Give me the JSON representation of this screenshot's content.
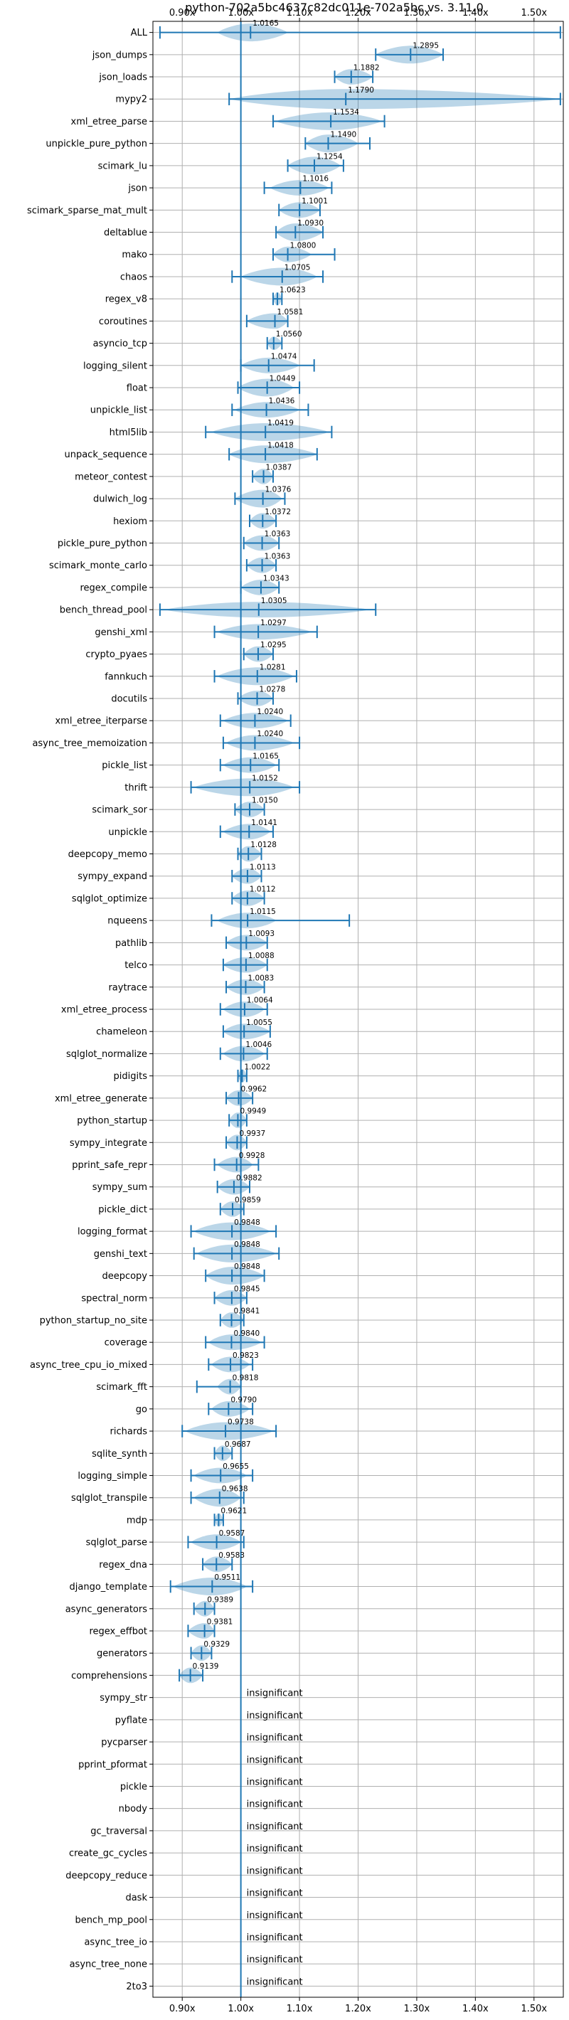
{
  "chart_data": {
    "type": "violin",
    "title": "python-702a5bc4637c82dc011e-702a5bc vs. 3.11.0",
    "xlim": [
      0.85,
      1.55
    ],
    "xticks": [
      0.9,
      1.0,
      1.1,
      1.2,
      1.3,
      1.4,
      1.5
    ],
    "xtick_labels": [
      "0.90x",
      "1.00x",
      "1.10x",
      "1.20x",
      "1.30x",
      "1.40x",
      "1.50x"
    ],
    "x_axis_position": "top and bottom",
    "reference_line": 1.0,
    "grid": true,
    "insignificant_label": "insignificant",
    "benchmarks": [
      {
        "name": "ALL",
        "value": 1.0165,
        "label": "1.0165",
        "lo": 0.862,
        "hi": 1.545,
        "vlo": 0.96,
        "vhi": 1.08,
        "vw": 0.8
      },
      {
        "name": "json_dumps",
        "value": 1.2895,
        "label": "1.2895",
        "lo": 1.23,
        "hi": 1.345,
        "vlo": 1.23,
        "vhi": 1.345,
        "vw": 0.8
      },
      {
        "name": "json_loads",
        "value": 1.1882,
        "label": "1.1882",
        "lo": 1.16,
        "hi": 1.225,
        "vlo": 1.16,
        "vhi": 1.225,
        "vw": 0.7
      },
      {
        "name": "mypy2",
        "value": 1.179,
        "label": "1.1790",
        "lo": 0.98,
        "hi": 1.545,
        "vlo": 0.98,
        "vhi": 1.545,
        "vw": 0.9
      },
      {
        "name": "xml_etree_parse",
        "value": 1.1534,
        "label": "1.1534",
        "lo": 1.055,
        "hi": 1.245,
        "vlo": 1.06,
        "vhi": 1.24,
        "vw": 0.8
      },
      {
        "name": "unpickle_pure_python",
        "value": 1.149,
        "label": "1.1490",
        "lo": 1.11,
        "hi": 1.22,
        "vlo": 1.11,
        "vhi": 1.2,
        "vw": 0.8
      },
      {
        "name": "scimark_lu",
        "value": 1.1254,
        "label": "1.1254",
        "lo": 1.08,
        "hi": 1.175,
        "vlo": 1.08,
        "vhi": 1.17,
        "vw": 0.8
      },
      {
        "name": "json",
        "value": 1.1016,
        "label": "1.1016",
        "lo": 1.04,
        "hi": 1.155,
        "vlo": 1.05,
        "vhi": 1.15,
        "vw": 0.7
      },
      {
        "name": "scimark_sparse_mat_mult",
        "value": 1.1001,
        "label": "1.1001",
        "lo": 1.065,
        "hi": 1.135,
        "vlo": 1.065,
        "vhi": 1.135,
        "vw": 0.7
      },
      {
        "name": "deltablue",
        "value": 1.093,
        "label": "1.0930",
        "lo": 1.06,
        "hi": 1.14,
        "vlo": 1.06,
        "vhi": 1.14,
        "vw": 0.8
      },
      {
        "name": "mako",
        "value": 1.08,
        "label": "1.0800",
        "lo": 1.055,
        "hi": 1.16,
        "vlo": 1.055,
        "vhi": 1.12,
        "vw": 0.7
      },
      {
        "name": "chaos",
        "value": 1.0705,
        "label": "1.0705",
        "lo": 0.985,
        "hi": 1.14,
        "vlo": 1.0,
        "vhi": 1.13,
        "vw": 0.8
      },
      {
        "name": "regex_v8",
        "value": 1.0623,
        "label": "1.0623",
        "lo": 1.055,
        "hi": 1.07,
        "vlo": 1.055,
        "vhi": 1.07,
        "vw": 0.6
      },
      {
        "name": "coroutines",
        "value": 1.0581,
        "label": "1.0581",
        "lo": 1.01,
        "hi": 1.08,
        "vlo": 1.01,
        "vhi": 1.08,
        "vw": 0.7
      },
      {
        "name": "asyncio_tcp",
        "value": 1.056,
        "label": "1.0560",
        "lo": 1.045,
        "hi": 1.07,
        "vlo": 1.045,
        "vhi": 1.07,
        "vw": 0.6
      },
      {
        "name": "logging_silent",
        "value": 1.0474,
        "label": "1.0474",
        "lo": 1.0,
        "hi": 1.125,
        "vlo": 1.0,
        "vhi": 1.1,
        "vw": 0.7
      },
      {
        "name": "float",
        "value": 1.0449,
        "label": "1.0449",
        "lo": 0.995,
        "hi": 1.1,
        "vlo": 0.995,
        "vhi": 1.09,
        "vw": 0.8
      },
      {
        "name": "unpickle_list",
        "value": 1.0436,
        "label": "1.0436",
        "lo": 0.985,
        "hi": 1.115,
        "vlo": 0.99,
        "vhi": 1.1,
        "vw": 0.7
      },
      {
        "name": "html5lib",
        "value": 1.0419,
        "label": "1.0419",
        "lo": 0.94,
        "hi": 1.155,
        "vlo": 0.95,
        "vhi": 1.15,
        "vw": 0.8
      },
      {
        "name": "unpack_sequence",
        "value": 1.0418,
        "label": "1.0418",
        "lo": 0.98,
        "hi": 1.13,
        "vlo": 0.98,
        "vhi": 1.13,
        "vw": 0.8
      },
      {
        "name": "meteor_contest",
        "value": 1.0387,
        "label": "1.0387",
        "lo": 1.02,
        "hi": 1.055,
        "vlo": 1.02,
        "vhi": 1.055,
        "vw": 0.7
      },
      {
        "name": "dulwich_log",
        "value": 1.0376,
        "label": "1.0376",
        "lo": 0.99,
        "hi": 1.075,
        "vlo": 0.99,
        "vhi": 1.07,
        "vw": 0.8
      },
      {
        "name": "hexiom",
        "value": 1.0372,
        "label": "1.0372",
        "lo": 1.015,
        "hi": 1.06,
        "vlo": 1.015,
        "vhi": 1.06,
        "vw": 0.7
      },
      {
        "name": "pickle_pure_python",
        "value": 1.0363,
        "label": "1.0363",
        "lo": 1.005,
        "hi": 1.065,
        "vlo": 1.005,
        "vhi": 1.065,
        "vw": 0.7
      },
      {
        "name": "scimark_monte_carlo",
        "value": 1.0363,
        "label": "1.0363",
        "lo": 1.01,
        "hi": 1.06,
        "vlo": 1.01,
        "vhi": 1.06,
        "vw": 0.7
      },
      {
        "name": "regex_compile",
        "value": 1.0343,
        "label": "1.0343",
        "lo": 1.0,
        "hi": 1.065,
        "vlo": 1.0,
        "vhi": 1.065,
        "vw": 0.7
      },
      {
        "name": "bench_thread_pool",
        "value": 1.0305,
        "label": "1.0305",
        "lo": 0.862,
        "hi": 1.23,
        "vlo": 0.87,
        "vhi": 1.22,
        "vw": 0.7
      },
      {
        "name": "genshi_xml",
        "value": 1.0297,
        "label": "1.0297",
        "lo": 0.955,
        "hi": 1.13,
        "vlo": 0.96,
        "vhi": 1.12,
        "vw": 0.7
      },
      {
        "name": "crypto_pyaes",
        "value": 1.0295,
        "label": "1.0295",
        "lo": 1.005,
        "hi": 1.055,
        "vlo": 1.005,
        "vhi": 1.055,
        "vw": 0.7
      },
      {
        "name": "fannkuch",
        "value": 1.0281,
        "label": "1.0281",
        "lo": 0.955,
        "hi": 1.095,
        "vlo": 0.96,
        "vhi": 1.09,
        "vw": 0.8
      },
      {
        "name": "docutils",
        "value": 1.0278,
        "label": "1.0278",
        "lo": 0.995,
        "hi": 1.055,
        "vlo": 0.995,
        "vhi": 1.055,
        "vw": 0.7
      },
      {
        "name": "xml_etree_iterparse",
        "value": 1.024,
        "label": "1.0240",
        "lo": 0.965,
        "hi": 1.085,
        "vlo": 0.97,
        "vhi": 1.08,
        "vw": 0.7
      },
      {
        "name": "async_tree_memoization",
        "value": 1.024,
        "label": "1.0240",
        "lo": 0.97,
        "hi": 1.1,
        "vlo": 0.975,
        "vhi": 1.09,
        "vw": 0.7
      },
      {
        "name": "pickle_list",
        "value": 1.0165,
        "label": "1.0165",
        "lo": 0.965,
        "hi": 1.065,
        "vlo": 0.97,
        "vhi": 1.06,
        "vw": 0.7
      },
      {
        "name": "thrift",
        "value": 1.0152,
        "label": "1.0152",
        "lo": 0.915,
        "hi": 1.1,
        "vlo": 0.92,
        "vhi": 1.09,
        "vw": 0.8
      },
      {
        "name": "scimark_sor",
        "value": 1.015,
        "label": "1.0150",
        "lo": 0.99,
        "hi": 1.04,
        "vlo": 0.99,
        "vhi": 1.04,
        "vw": 0.7
      },
      {
        "name": "unpickle",
        "value": 1.0141,
        "label": "1.0141",
        "lo": 0.965,
        "hi": 1.055,
        "vlo": 0.97,
        "vhi": 1.05,
        "vw": 0.7
      },
      {
        "name": "deepcopy_memo",
        "value": 1.0128,
        "label": "1.0128",
        "lo": 0.995,
        "hi": 1.035,
        "vlo": 0.995,
        "vhi": 1.035,
        "vw": 0.7
      },
      {
        "name": "sympy_expand",
        "value": 1.0113,
        "label": "1.0113",
        "lo": 0.985,
        "hi": 1.035,
        "vlo": 0.985,
        "vhi": 1.035,
        "vw": 0.7
      },
      {
        "name": "sqlglot_optimize",
        "value": 1.0112,
        "label": "1.0112",
        "lo": 0.985,
        "hi": 1.04,
        "vlo": 0.985,
        "vhi": 1.04,
        "vw": 0.7
      },
      {
        "name": "nqueens",
        "value": 1.0115,
        "label": "1.0115",
        "lo": 0.95,
        "hi": 1.185,
        "vlo": 0.96,
        "vhi": 1.06,
        "vw": 0.7
      },
      {
        "name": "pathlib",
        "value": 1.0093,
        "label": "1.0093",
        "lo": 0.975,
        "hi": 1.045,
        "vlo": 0.975,
        "vhi": 1.045,
        "vw": 0.7
      },
      {
        "name": "telco",
        "value": 1.0088,
        "label": "1.0088",
        "lo": 0.97,
        "hi": 1.045,
        "vlo": 0.97,
        "vhi": 1.045,
        "vw": 0.7
      },
      {
        "name": "raytrace",
        "value": 1.0083,
        "label": "1.0083",
        "lo": 0.975,
        "hi": 1.04,
        "vlo": 0.975,
        "vhi": 1.04,
        "vw": 0.7
      },
      {
        "name": "xml_etree_process",
        "value": 1.0064,
        "label": "1.0064",
        "lo": 0.965,
        "hi": 1.045,
        "vlo": 0.97,
        "vhi": 1.04,
        "vw": 0.7
      },
      {
        "name": "chameleon",
        "value": 1.0055,
        "label": "1.0055",
        "lo": 0.97,
        "hi": 1.05,
        "vlo": 0.97,
        "vhi": 1.05,
        "vw": 0.7
      },
      {
        "name": "sqlglot_normalize",
        "value": 1.0046,
        "label": "1.0046",
        "lo": 0.965,
        "hi": 1.045,
        "vlo": 0.97,
        "vhi": 1.04,
        "vw": 0.7
      },
      {
        "name": "pidigits",
        "value": 1.0022,
        "label": "1.0022",
        "lo": 0.995,
        "hi": 1.01,
        "vlo": 0.995,
        "vhi": 1.01,
        "vw": 0.6
      },
      {
        "name": "xml_etree_generate",
        "value": 0.9962,
        "label": "0.9962",
        "lo": 0.975,
        "hi": 1.02,
        "vlo": 0.975,
        "vhi": 1.02,
        "vw": 0.7
      },
      {
        "name": "python_startup",
        "value": 0.9949,
        "label": "0.9949",
        "lo": 0.98,
        "hi": 1.01,
        "vlo": 0.98,
        "vhi": 1.01,
        "vw": 0.7
      },
      {
        "name": "sympy_integrate",
        "value": 0.9937,
        "label": "0.9937",
        "lo": 0.975,
        "hi": 1.01,
        "vlo": 0.975,
        "vhi": 1.01,
        "vw": 0.7
      },
      {
        "name": "pprint_safe_repr",
        "value": 0.9928,
        "label": "0.9928",
        "lo": 0.955,
        "hi": 1.03,
        "vlo": 0.96,
        "vhi": 1.02,
        "vw": 0.7
      },
      {
        "name": "sympy_sum",
        "value": 0.9882,
        "label": "0.9882",
        "lo": 0.96,
        "hi": 1.015,
        "vlo": 0.96,
        "vhi": 1.015,
        "vw": 0.7
      },
      {
        "name": "pickle_dict",
        "value": 0.9859,
        "label": "0.9859",
        "lo": 0.965,
        "hi": 1.005,
        "vlo": 0.965,
        "vhi": 1.005,
        "vw": 0.7
      },
      {
        "name": "logging_format",
        "value": 0.9848,
        "label": "0.9848",
        "lo": 0.915,
        "hi": 1.06,
        "vlo": 0.92,
        "vhi": 1.05,
        "vw": 0.8
      },
      {
        "name": "genshi_text",
        "value": 0.9848,
        "label": "0.9848",
        "lo": 0.92,
        "hi": 1.065,
        "vlo": 0.925,
        "vhi": 1.06,
        "vw": 0.8
      },
      {
        "name": "deepcopy",
        "value": 0.9848,
        "label": "0.9848",
        "lo": 0.94,
        "hi": 1.04,
        "vlo": 0.94,
        "vhi": 1.04,
        "vw": 0.8
      },
      {
        "name": "spectral_norm",
        "value": 0.9845,
        "label": "0.9845",
        "lo": 0.955,
        "hi": 1.01,
        "vlo": 0.955,
        "vhi": 1.01,
        "vw": 0.7
      },
      {
        "name": "python_startup_no_site",
        "value": 0.9841,
        "label": "0.9841",
        "lo": 0.965,
        "hi": 1.005,
        "vlo": 0.965,
        "vhi": 1.005,
        "vw": 0.7
      },
      {
        "name": "coverage",
        "value": 0.984,
        "label": "0.9840",
        "lo": 0.94,
        "hi": 1.04,
        "vlo": 0.945,
        "vhi": 1.035,
        "vw": 0.7
      },
      {
        "name": "async_tree_cpu_io_mixed",
        "value": 0.9823,
        "label": "0.9823",
        "lo": 0.945,
        "hi": 1.02,
        "vlo": 0.95,
        "vhi": 1.015,
        "vw": 0.7
      },
      {
        "name": "scimark_fft",
        "value": 0.9818,
        "label": "0.9818",
        "lo": 0.925,
        "hi": 1.0,
        "vlo": 0.96,
        "vhi": 1.0,
        "vw": 0.7
      },
      {
        "name": "go",
        "value": 0.979,
        "label": "0.9790",
        "lo": 0.945,
        "hi": 1.02,
        "vlo": 0.95,
        "vhi": 1.015,
        "vw": 0.7
      },
      {
        "name": "richards",
        "value": 0.9738,
        "label": "0.9738",
        "lo": 0.9,
        "hi": 1.06,
        "vlo": 0.905,
        "vhi": 1.055,
        "vw": 0.8
      },
      {
        "name": "sqlite_synth",
        "value": 0.9687,
        "label": "0.9687",
        "lo": 0.955,
        "hi": 0.985,
        "vlo": 0.955,
        "vhi": 0.985,
        "vw": 0.7
      },
      {
        "name": "logging_simple",
        "value": 0.9655,
        "label": "0.9655",
        "lo": 0.915,
        "hi": 1.02,
        "vlo": 0.92,
        "vhi": 1.01,
        "vw": 0.7
      },
      {
        "name": "sqlglot_transpile",
        "value": 0.9638,
        "label": "0.9638",
        "lo": 0.915,
        "hi": 1.005,
        "vlo": 0.92,
        "vhi": 1.0,
        "vw": 0.8
      },
      {
        "name": "mdp",
        "value": 0.9621,
        "label": "0.9621",
        "lo": 0.955,
        "hi": 0.97,
        "vlo": 0.955,
        "vhi": 0.97,
        "vw": 0.6
      },
      {
        "name": "sqlglot_parse",
        "value": 0.9587,
        "label": "0.9587",
        "lo": 0.91,
        "hi": 1.005,
        "vlo": 0.915,
        "vhi": 1.0,
        "vw": 0.7
      },
      {
        "name": "regex_dna",
        "value": 0.9583,
        "label": "0.9583",
        "lo": 0.935,
        "hi": 0.985,
        "vlo": 0.935,
        "vhi": 0.985,
        "vw": 0.7
      },
      {
        "name": "django_template",
        "value": 0.9511,
        "label": "0.9511",
        "lo": 0.88,
        "hi": 1.02,
        "vlo": 0.885,
        "vhi": 1.01,
        "vw": 0.8
      },
      {
        "name": "async_generators",
        "value": 0.9389,
        "label": "0.9389",
        "lo": 0.92,
        "hi": 0.955,
        "vlo": 0.92,
        "vhi": 0.955,
        "vw": 0.7
      },
      {
        "name": "regex_effbot",
        "value": 0.9381,
        "label": "0.9381",
        "lo": 0.91,
        "hi": 0.955,
        "vlo": 0.91,
        "vhi": 0.955,
        "vw": 0.7
      },
      {
        "name": "generators",
        "value": 0.9329,
        "label": "0.9329",
        "lo": 0.915,
        "hi": 0.95,
        "vlo": 0.915,
        "vhi": 0.95,
        "vw": 0.7
      },
      {
        "name": "comprehensions",
        "value": 0.9139,
        "label": "0.9139",
        "lo": 0.895,
        "hi": 0.935,
        "vlo": 0.895,
        "vhi": 0.935,
        "vw": 0.7
      },
      {
        "name": "sympy_str",
        "insignificant": true
      },
      {
        "name": "pyflate",
        "insignificant": true
      },
      {
        "name": "pycparser",
        "insignificant": true
      },
      {
        "name": "pprint_pformat",
        "insignificant": true
      },
      {
        "name": "pickle",
        "insignificant": true
      },
      {
        "name": "nbody",
        "insignificant": true
      },
      {
        "name": "gc_traversal",
        "insignificant": true
      },
      {
        "name": "create_gc_cycles",
        "insignificant": true
      },
      {
        "name": "deepcopy_reduce",
        "insignificant": true
      },
      {
        "name": "dask",
        "insignificant": true
      },
      {
        "name": "bench_mp_pool",
        "insignificant": true
      },
      {
        "name": "async_tree_io",
        "insignificant": true
      },
      {
        "name": "async_tree_none",
        "insignificant": true
      },
      {
        "name": "2to3",
        "insignificant": true
      }
    ]
  },
  "colors": {
    "series": "#1f77b4",
    "grid": "#b0b0b0",
    "text": "#000000"
  }
}
